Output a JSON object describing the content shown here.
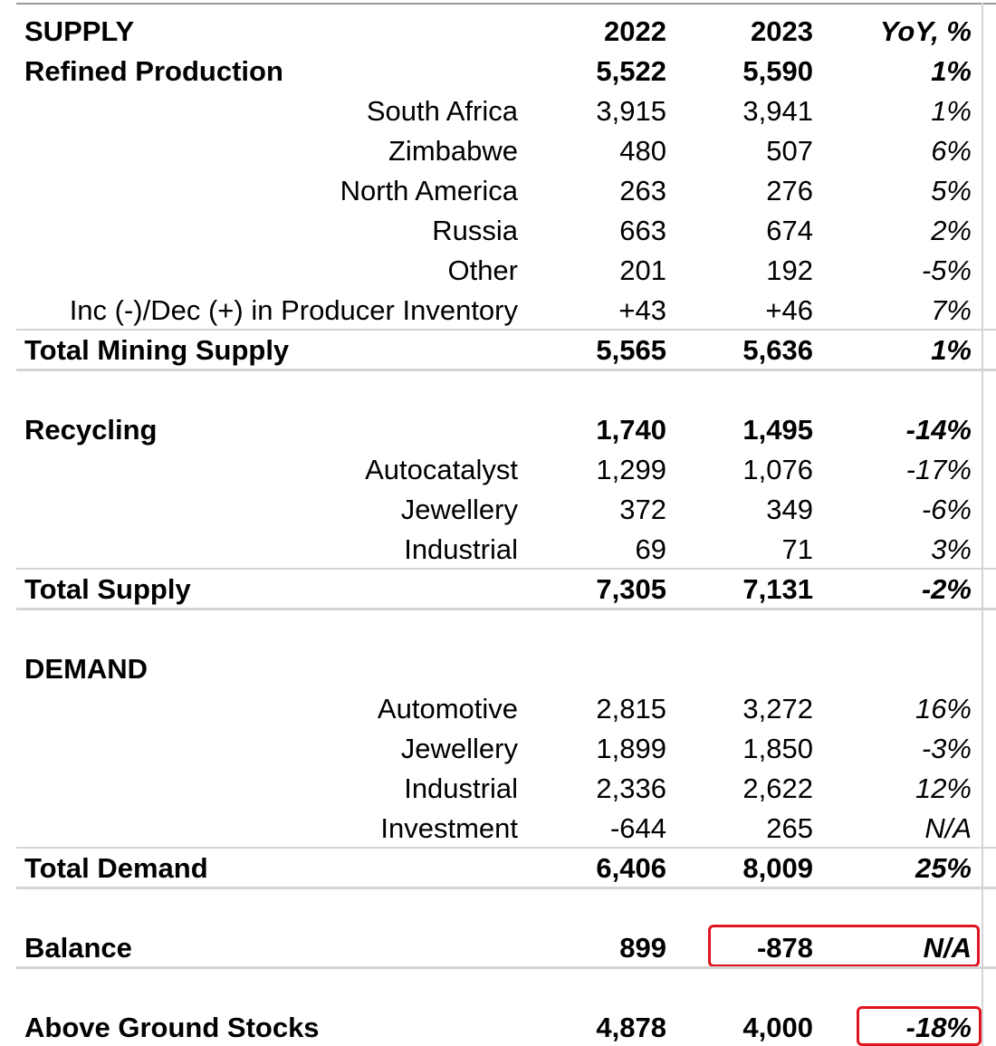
{
  "table": {
    "rows": [
      [
        "SUPPLY",
        "2022",
        "2023",
        "YoY, %"
      ],
      [
        "Refined Production",
        "5,522",
        "5,590",
        "1%"
      ],
      [
        "South Africa",
        "3,915",
        "3,941",
        "1%"
      ],
      [
        "Zimbabwe",
        "480",
        "507",
        "6%"
      ],
      [
        "North America",
        "263",
        "276",
        "5%"
      ],
      [
        "Russia",
        "663",
        "674",
        "2%"
      ],
      [
        "Other",
        "201",
        "192",
        "-5%"
      ],
      [
        "Inc (-)/Dec (+) in Producer Inventory",
        "+43",
        "+46",
        "7%"
      ],
      [
        "Total Mining Supply",
        "5,565",
        "5,636",
        "1%"
      ],
      [
        "Recycling",
        "1,740",
        "1,495",
        "-14%"
      ],
      [
        "Autocatalyst",
        "1,299",
        "1,076",
        "-17%"
      ],
      [
        "Jewellery",
        "372",
        "349",
        "-6%"
      ],
      [
        "Industrial",
        "69",
        "71",
        "3%"
      ],
      [
        "Total Supply",
        "7,305",
        "7,131",
        "-2%"
      ],
      [
        "DEMAND"
      ],
      [
        "Automotive",
        "2,815",
        "3,272",
        "16%"
      ],
      [
        "Jewellery",
        "1,899",
        "1,850",
        "-3%"
      ],
      [
        "Industrial",
        "2,336",
        "2,622",
        "12%"
      ],
      [
        "Investment",
        "-644",
        "265",
        "N/A"
      ],
      [
        "Total Demand",
        "6,406",
        "8,009",
        "25%"
      ],
      [
        "Balance",
        "899",
        "-878",
        "N/A"
      ],
      [
        "Above Ground Stocks",
        "4,878",
        "4,000",
        "-18%"
      ]
    ]
  }
}
